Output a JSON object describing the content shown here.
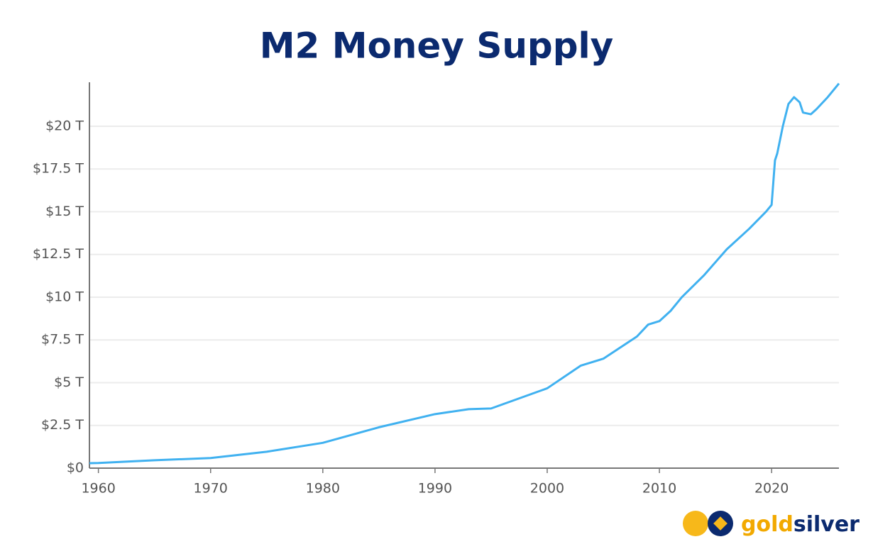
{
  "chart_data": {
    "type": "line",
    "title": "M2 Money Supply",
    "x": [
      1959.2,
      1960,
      1965,
      1970,
      1975,
      1980,
      1985,
      1990,
      1993,
      1995,
      2000,
      2003,
      2005,
      2008,
      2009,
      2010,
      2011,
      2012,
      2014,
      2016,
      2018,
      2019.5,
      2020,
      2020.3,
      2020.5,
      2021,
      2021.5,
      2022,
      2022.5,
      2022.8,
      2023.5,
      2024,
      2025,
      2026
    ],
    "values": [
      0.29,
      0.3,
      0.46,
      0.59,
      0.96,
      1.48,
      2.39,
      3.16,
      3.45,
      3.49,
      4.67,
      6.0,
      6.4,
      7.7,
      8.4,
      8.6,
      9.2,
      10.0,
      11.3,
      12.8,
      14.0,
      15.0,
      15.4,
      18.0,
      18.4,
      20.0,
      21.3,
      21.7,
      21.4,
      20.8,
      20.7,
      21.0,
      21.7,
      22.5
    ],
    "color": "#40b1f0",
    "xlim": [
      1959.2,
      2026
    ],
    "xticks": [
      1960,
      1970,
      1980,
      1990,
      2000,
      2010,
      2020
    ],
    "ylim": [
      0,
      22.57
    ],
    "yticks": [
      {
        "value": 0,
        "label": "$0"
      },
      {
        "value": 2.5,
        "label": "$2.5 T"
      },
      {
        "value": 5,
        "label": "$5 T"
      },
      {
        "value": 7.5,
        "label": "$7.5 T"
      },
      {
        "value": 10,
        "label": "$10 T"
      },
      {
        "value": 12.5,
        "label": "$12.5 T"
      },
      {
        "value": 15,
        "label": "$15 T"
      },
      {
        "value": 17.5,
        "label": "$17.5 T"
      },
      {
        "value": 20,
        "label": "$20 T"
      }
    ],
    "grid": true,
    "brand": {
      "gold": "gold",
      "silver": "silver"
    }
  }
}
